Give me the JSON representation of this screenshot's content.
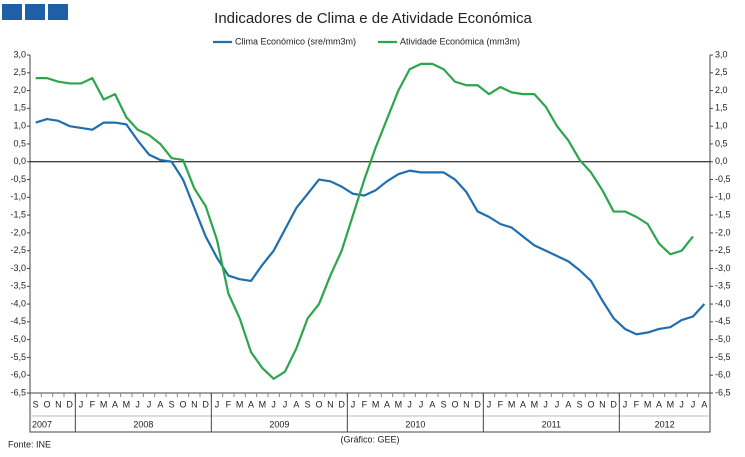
{
  "chart_data": {
    "type": "line",
    "title": "Indicadores de Clima  e de Atividade Económica",
    "categories": [
      "S",
      "O",
      "N",
      "D",
      "J",
      "F",
      "M",
      "A",
      "M",
      "J",
      "J",
      "A",
      "S",
      "O",
      "N",
      "D",
      "J",
      "F",
      "M",
      "A",
      "M",
      "J",
      "J",
      "A",
      "S",
      "O",
      "N",
      "D",
      "J",
      "F",
      "M",
      "A",
      "M",
      "J",
      "J",
      "A",
      "S",
      "O",
      "N",
      "D",
      "J",
      "F",
      "M",
      "A",
      "M",
      "J",
      "J",
      "A",
      "S",
      "O",
      "N",
      "D",
      "J",
      "F",
      "M",
      "A",
      "M",
      "J",
      "J",
      "A"
    ],
    "years": [
      {
        "label": "2007",
        "count": 4
      },
      {
        "label": "2008",
        "count": 12
      },
      {
        "label": "2009",
        "count": 12
      },
      {
        "label": "2010",
        "count": 12
      },
      {
        "label": "2011",
        "count": 12
      },
      {
        "label": "2012",
        "count": 8
      }
    ],
    "series": [
      {
        "name": "Clima Económico (sre/mm3m)",
        "color": "#1f6fb0",
        "values": [
          1.1,
          1.2,
          1.15,
          1.0,
          0.95,
          0.9,
          1.1,
          1.1,
          1.05,
          0.6,
          0.2,
          0.05,
          0.0,
          -0.5,
          -1.3,
          -2.1,
          -2.7,
          -3.2,
          -3.3,
          -3.35,
          -2.9,
          -2.5,
          -1.9,
          -1.3,
          -0.9,
          -0.5,
          -0.55,
          -0.7,
          -0.9,
          -0.95,
          -0.8,
          -0.55,
          -0.35,
          -0.25,
          -0.3,
          -0.3,
          -0.3,
          -0.5,
          -0.85,
          -1.4,
          -1.55,
          -1.75,
          -1.85,
          -2.1,
          -2.35,
          -2.5,
          -2.65,
          -2.8,
          -3.05,
          -3.35,
          -3.9,
          -4.4,
          -4.7,
          -4.85,
          -4.8,
          -4.7,
          -4.65,
          -4.45,
          -4.35,
          -4.0
        ]
      },
      {
        "name": "Atividade Económica (mm3m)",
        "color": "#2ca64c",
        "values": [
          2.35,
          2.35,
          2.25,
          2.2,
          2.2,
          2.35,
          1.75,
          1.9,
          1.25,
          0.9,
          0.75,
          0.5,
          0.1,
          0.05,
          -0.75,
          -1.25,
          -2.2,
          -3.7,
          -4.4,
          -5.35,
          -5.8,
          -6.1,
          -5.9,
          -5.25,
          -4.4,
          -4.0,
          -3.2,
          -2.5,
          -1.5,
          -0.5,
          0.4,
          1.2,
          2.0,
          2.6,
          2.75,
          2.75,
          2.6,
          2.25,
          2.15,
          2.15,
          1.9,
          2.1,
          1.95,
          1.9,
          1.9,
          1.55,
          1.0,
          0.6,
          0.05,
          -0.3,
          -0.8,
          -1.4,
          -1.4,
          -1.55,
          -1.75,
          -2.3,
          -2.6,
          -2.5,
          -2.1,
          null
        ]
      }
    ],
    "ylim": [
      -6.5,
      3.0
    ],
    "yticks": [
      {
        "value": 3.0,
        "label": "3,0"
      },
      {
        "value": 2.5,
        "label": "2,5"
      },
      {
        "value": 2.0,
        "label": "2,0"
      },
      {
        "value": 1.5,
        "label": "1,5"
      },
      {
        "value": 1.0,
        "label": "1,0"
      },
      {
        "value": 0.5,
        "label": "0,5"
      },
      {
        "value": 0.0,
        "label": "0,0"
      },
      {
        "value": -0.5,
        "label": "-0,5"
      },
      {
        "value": -1.0,
        "label": "-1,0"
      },
      {
        "value": -1.5,
        "label": "-1,5"
      },
      {
        "value": -2.0,
        "label": "-2,0"
      },
      {
        "value": -2.5,
        "label": "-2,5"
      },
      {
        "value": -3.0,
        "label": "-3,0"
      },
      {
        "value": -3.5,
        "label": "-3,5"
      },
      {
        "value": -4.0,
        "label": "-4,0"
      },
      {
        "value": -4.5,
        "label": "-4,5"
      },
      {
        "value": -5.0,
        "label": "-5,0"
      },
      {
        "value": -5.5,
        "label": "-5,5"
      },
      {
        "value": -6.0,
        "label": "-6,0"
      },
      {
        "value": -6.5,
        "label": "-6,5"
      }
    ],
    "y2lim": [
      -6.5,
      3.0
    ],
    "y2ticks": [
      {
        "value": 3.0,
        "label": "3,0"
      },
      {
        "value": 2.5,
        "label": "2,5"
      },
      {
        "value": 2.0,
        "label": "2,0"
      },
      {
        "value": 1.5,
        "label": "1,5"
      },
      {
        "value": 1.0,
        "label": "1,0"
      },
      {
        "value": 0.5,
        "label": "0,5"
      },
      {
        "value": 0.0,
        "label": "0,0"
      },
      {
        "value": -0.5,
        "label": "-0,5"
      },
      {
        "value": -1.0,
        "label": "-1,0"
      },
      {
        "value": -1.5,
        "label": "-1,5"
      },
      {
        "value": -2.0,
        "label": "-2,0"
      },
      {
        "value": -2.5,
        "label": "-2,5"
      },
      {
        "value": -3.0,
        "label": "-3,0"
      },
      {
        "value": -3.5,
        "label": "-3,5"
      },
      {
        "value": -4.0,
        "label": "-4,0"
      },
      {
        "value": -4.5,
        "label": "-4,5"
      },
      {
        "value": -5.0,
        "label": "-5,0"
      },
      {
        "value": -5.5,
        "label": "-5,5"
      },
      {
        "value": -6.0,
        "label": "-6,0"
      },
      {
        "value": -6.5,
        "label": "-6,5"
      }
    ],
    "source": "Fonte: INE",
    "credit": "(Gráfico:  GEE)"
  }
}
